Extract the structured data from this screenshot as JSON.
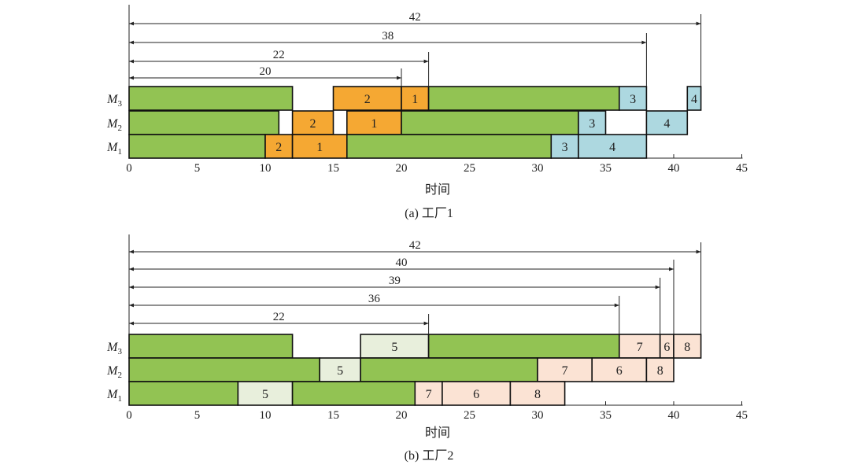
{
  "chart_data": [
    {
      "type": "gantt",
      "caption": "(a) 工厂1",
      "xlabel": "时间",
      "xlim": [
        0,
        45
      ],
      "ticks": [
        0,
        5,
        10,
        15,
        20,
        25,
        30,
        35,
        40,
        45
      ],
      "machines": [
        {
          "name": "M",
          "sub": "3"
        },
        {
          "name": "M",
          "sub": "2"
        },
        {
          "name": "M",
          "sub": "1"
        }
      ],
      "colors": {
        "green": "#92c353",
        "orange": "#f5a833",
        "blue": "#add8e0"
      },
      "tasks": [
        {
          "machine": 0,
          "start": 0,
          "end": 12,
          "label": "",
          "color": "green"
        },
        {
          "machine": 0,
          "start": 15,
          "end": 20,
          "label": "2",
          "color": "orange"
        },
        {
          "machine": 0,
          "start": 20,
          "end": 22,
          "label": "1",
          "color": "orange"
        },
        {
          "machine": 0,
          "start": 22,
          "end": 36,
          "label": "",
          "color": "green"
        },
        {
          "machine": 0,
          "start": 36,
          "end": 38,
          "label": "3",
          "color": "blue"
        },
        {
          "machine": 0,
          "start": 41,
          "end": 42,
          "label": "4",
          "color": "blue"
        },
        {
          "machine": 1,
          "start": 0,
          "end": 11,
          "label": "",
          "color": "green"
        },
        {
          "machine": 1,
          "start": 12,
          "end": 15,
          "label": "2",
          "color": "orange"
        },
        {
          "machine": 1,
          "start": 16,
          "end": 20,
          "label": "1",
          "color": "orange"
        },
        {
          "machine": 1,
          "start": 20,
          "end": 33,
          "label": "",
          "color": "green"
        },
        {
          "machine": 1,
          "start": 33,
          "end": 35,
          "label": "3",
          "color": "blue"
        },
        {
          "machine": 1,
          "start": 38,
          "end": 41,
          "label": "4",
          "color": "blue"
        },
        {
          "machine": 2,
          "start": 0,
          "end": 10,
          "label": "",
          "color": "green"
        },
        {
          "machine": 2,
          "start": 10,
          "end": 12,
          "label": "2",
          "color": "orange"
        },
        {
          "machine": 2,
          "start": 12,
          "end": 16,
          "label": "1",
          "color": "orange"
        },
        {
          "machine": 2,
          "start": 16,
          "end": 31,
          "label": "",
          "color": "green"
        },
        {
          "machine": 2,
          "start": 31,
          "end": 33,
          "label": "3",
          "color": "blue"
        },
        {
          "machine": 2,
          "start": 33,
          "end": 38,
          "label": "4",
          "color": "blue"
        }
      ],
      "spans": [
        {
          "label": "42",
          "end": 42
        },
        {
          "label": "38",
          "end": 38
        },
        {
          "label": "22",
          "end": 22
        },
        {
          "label": "20",
          "end": 20
        }
      ]
    },
    {
      "type": "gantt",
      "caption": "(b) 工厂2",
      "xlabel": "时间",
      "xlim": [
        0,
        45
      ],
      "ticks": [
        0,
        5,
        10,
        15,
        20,
        25,
        30,
        35,
        40,
        45
      ],
      "machines": [
        {
          "name": "M",
          "sub": "3"
        },
        {
          "name": "M",
          "sub": "2"
        },
        {
          "name": "M",
          "sub": "1"
        }
      ],
      "colors": {
        "green": "#92c353",
        "cream": "#e8efdc",
        "peach": "#fbe3d4"
      },
      "tasks": [
        {
          "machine": 0,
          "start": 0,
          "end": 12,
          "label": "",
          "color": "green"
        },
        {
          "machine": 0,
          "start": 17,
          "end": 22,
          "label": "5",
          "color": "cream"
        },
        {
          "machine": 0,
          "start": 22,
          "end": 36,
          "label": "",
          "color": "green"
        },
        {
          "machine": 0,
          "start": 36,
          "end": 39,
          "label": "7",
          "color": "peach"
        },
        {
          "machine": 0,
          "start": 39,
          "end": 40,
          "label": "6",
          "color": "peach"
        },
        {
          "machine": 0,
          "start": 40,
          "end": 42,
          "label": "8",
          "color": "peach"
        },
        {
          "machine": 1,
          "start": 0,
          "end": 14,
          "label": "",
          "color": "green"
        },
        {
          "machine": 1,
          "start": 14,
          "end": 17,
          "label": "5",
          "color": "cream"
        },
        {
          "machine": 1,
          "start": 17,
          "end": 30,
          "label": "",
          "color": "green"
        },
        {
          "machine": 1,
          "start": 30,
          "end": 34,
          "label": "7",
          "color": "peach"
        },
        {
          "machine": 1,
          "start": 34,
          "end": 38,
          "label": "6",
          "color": "peach"
        },
        {
          "machine": 1,
          "start": 38,
          "end": 40,
          "label": "8",
          "color": "peach"
        },
        {
          "machine": 2,
          "start": 0,
          "end": 8,
          "label": "",
          "color": "green"
        },
        {
          "machine": 2,
          "start": 8,
          "end": 12,
          "label": "5",
          "color": "cream"
        },
        {
          "machine": 2,
          "start": 12,
          "end": 21,
          "label": "",
          "color": "green"
        },
        {
          "machine": 2,
          "start": 21,
          "end": 23,
          "label": "7",
          "color": "peach"
        },
        {
          "machine": 2,
          "start": 23,
          "end": 28,
          "label": "6",
          "color": "peach"
        },
        {
          "machine": 2,
          "start": 28,
          "end": 32,
          "label": "8",
          "color": "peach"
        }
      ],
      "spans": [
        {
          "label": "42",
          "end": 42
        },
        {
          "label": "40",
          "end": 40
        },
        {
          "label": "39",
          "end": 39
        },
        {
          "label": "36",
          "end": 36
        },
        {
          "label": "22",
          "end": 22
        }
      ]
    }
  ]
}
